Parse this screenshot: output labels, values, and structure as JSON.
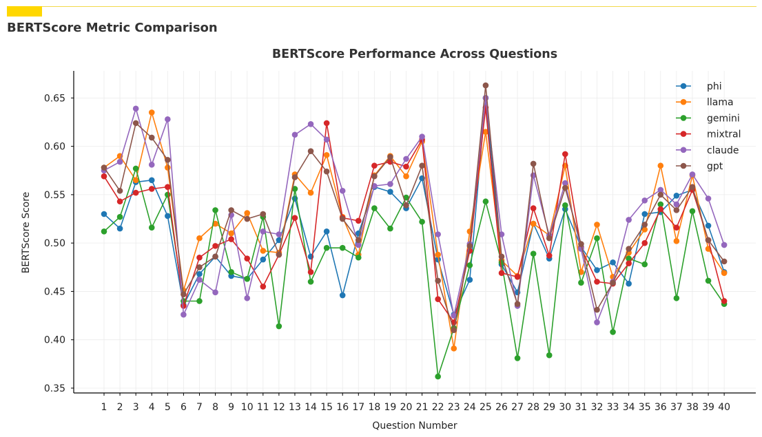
{
  "page": {
    "title": "BERTScore Metric Comparison",
    "accent_color": "#ffd700"
  },
  "chart_data": {
    "type": "line",
    "title": "BERTScore Performance Across Questions",
    "xlabel": "Question Number",
    "ylabel": "BERTScore Score",
    "ylim": [
      0.345,
      0.678
    ],
    "yticks": [
      0.35,
      0.4,
      0.45,
      0.5,
      0.55,
      0.6,
      0.65
    ],
    "ytick_labels": [
      "0.35",
      "0.40",
      "0.45",
      "0.50",
      "0.55",
      "0.60",
      "0.65"
    ],
    "grid": true,
    "legend_position": "top-right",
    "x": [
      1,
      2,
      3,
      4,
      5,
      6,
      7,
      8,
      9,
      10,
      11,
      12,
      13,
      14,
      15,
      16,
      17,
      18,
      19,
      20,
      21,
      22,
      23,
      24,
      25,
      26,
      27,
      28,
      29,
      30,
      31,
      32,
      33,
      34,
      35,
      36,
      37,
      38,
      39,
      40
    ],
    "series": [
      {
        "name": "phi",
        "color": "#1f77b4",
        "values": [
          0.53,
          0.515,
          0.563,
          0.565,
          0.528,
          0.436,
          0.468,
          0.486,
          0.466,
          0.463,
          0.483,
          0.503,
          0.546,
          0.486,
          0.512,
          0.446,
          0.51,
          0.558,
          0.553,
          0.536,
          0.567,
          0.483,
          0.426,
          0.462,
          0.65,
          0.478,
          0.449,
          0.52,
          0.484,
          0.535,
          0.496,
          0.472,
          0.48,
          0.458,
          0.53,
          0.532,
          0.549,
          0.555,
          0.518,
          0.47
        ]
      },
      {
        "name": "llama",
        "color": "#ff7f0e",
        "values": [
          0.578,
          0.59,
          0.565,
          0.635,
          0.578,
          0.451,
          0.505,
          0.52,
          0.51,
          0.531,
          0.492,
          0.49,
          0.571,
          0.552,
          0.591,
          0.527,
          0.488,
          0.57,
          0.59,
          0.569,
          0.605,
          0.488,
          0.391,
          0.512,
          0.615,
          0.482,
          0.466,
          0.52,
          0.508,
          0.58,
          0.47,
          0.519,
          0.465,
          0.49,
          0.514,
          0.58,
          0.502,
          0.57,
          0.494,
          0.469
        ]
      },
      {
        "name": "gemini",
        "color": "#2ca02c",
        "values": [
          0.512,
          0.527,
          0.577,
          0.516,
          0.55,
          0.44,
          0.44,
          0.534,
          0.47,
          0.463,
          0.527,
          0.414,
          0.556,
          0.46,
          0.495,
          0.495,
          0.485,
          0.536,
          0.515,
          0.547,
          0.522,
          0.362,
          0.412,
          0.477,
          0.543,
          0.48,
          0.381,
          0.489,
          0.384,
          0.539,
          0.459,
          0.505,
          0.408,
          0.484,
          0.478,
          0.54,
          0.443,
          0.533,
          0.461,
          0.437
        ]
      },
      {
        "name": "mixtral",
        "color": "#d62728",
        "values": [
          0.569,
          0.543,
          0.552,
          0.556,
          0.558,
          0.435,
          0.485,
          0.497,
          0.504,
          0.484,
          0.455,
          0.488,
          0.526,
          0.47,
          0.624,
          0.526,
          0.523,
          0.58,
          0.584,
          0.579,
          0.607,
          0.442,
          0.418,
          0.492,
          0.64,
          0.469,
          0.465,
          0.536,
          0.487,
          0.592,
          0.495,
          0.46,
          0.458,
          0.479,
          0.5,
          0.535,
          0.516,
          0.555,
          0.503,
          0.44
        ]
      },
      {
        "name": "claude",
        "color": "#9467bd",
        "values": [
          0.575,
          0.584,
          0.639,
          0.581,
          0.628,
          0.426,
          0.462,
          0.449,
          0.529,
          0.443,
          0.512,
          0.509,
          0.612,
          0.623,
          0.607,
          0.554,
          0.498,
          0.559,
          0.561,
          0.587,
          0.61,
          0.509,
          0.425,
          0.499,
          0.65,
          0.509,
          0.435,
          0.57,
          0.508,
          0.562,
          0.494,
          0.418,
          0.46,
          0.524,
          0.544,
          0.555,
          0.54,
          0.571,
          0.546,
          0.498
        ]
      },
      {
        "name": "gpt",
        "color": "#8c564b",
        "values": [
          0.578,
          0.554,
          0.624,
          0.609,
          0.586,
          0.447,
          0.475,
          0.486,
          0.534,
          0.525,
          0.53,
          0.488,
          0.568,
          0.595,
          0.574,
          0.525,
          0.503,
          0.569,
          0.589,
          0.539,
          0.58,
          0.461,
          0.41,
          0.497,
          0.663,
          0.486,
          0.437,
          0.582,
          0.505,
          0.557,
          0.499,
          0.431,
          0.459,
          0.494,
          0.519,
          0.55,
          0.534,
          0.558,
          0.503,
          0.481
        ]
      }
    ]
  }
}
